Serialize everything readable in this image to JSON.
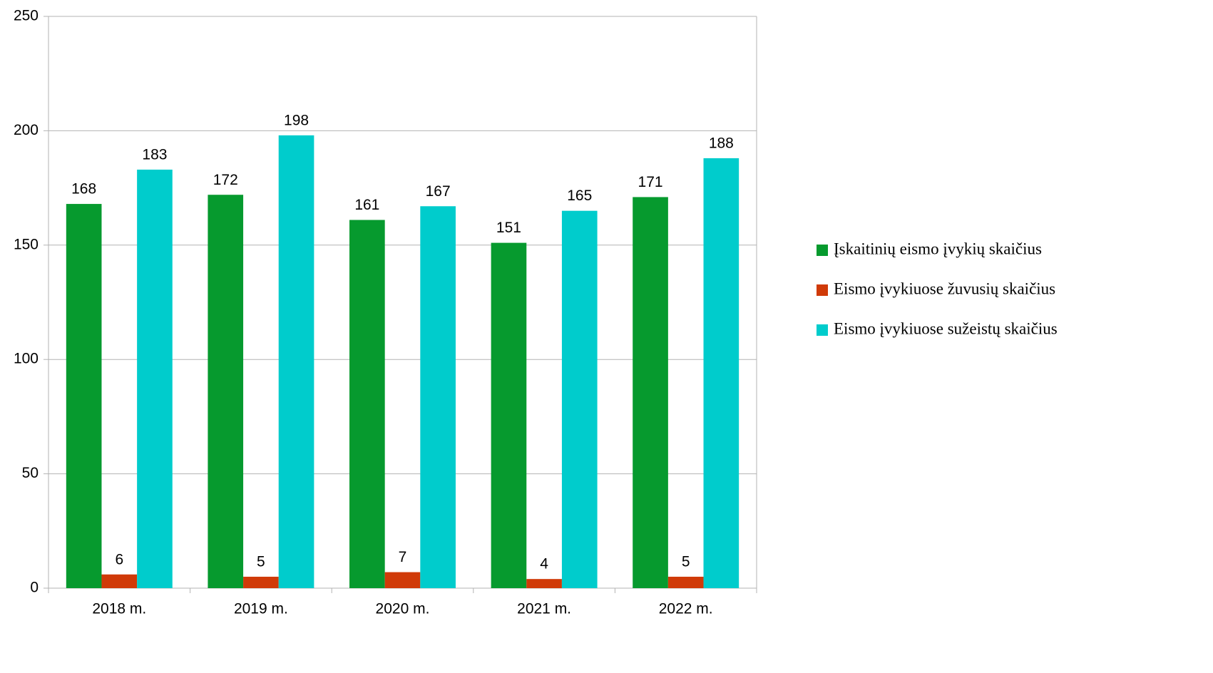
{
  "chart_data": {
    "type": "bar",
    "categories": [
      "2018 m.",
      "2019 m.",
      "2020 m.",
      "2021 m.",
      "2022 m."
    ],
    "series": [
      {
        "name": "Įskaitinių eismo įvykių skaičius",
        "color": "#069a2e",
        "values": [
          168,
          172,
          161,
          151,
          171
        ]
      },
      {
        "name": "Eismo įvykiuose žuvusių skaičius",
        "color": "#d03a08",
        "values": [
          6,
          5,
          7,
          4,
          5
        ]
      },
      {
        "name": "Eismo įvykiuose sužeistų skaičius",
        "color": "#00cccc",
        "values": [
          183,
          198,
          167,
          165,
          188
        ]
      }
    ],
    "ylim": [
      0,
      250
    ],
    "yticks": [
      0,
      50,
      100,
      150,
      200,
      250
    ],
    "grid": true,
    "legend": "right"
  }
}
